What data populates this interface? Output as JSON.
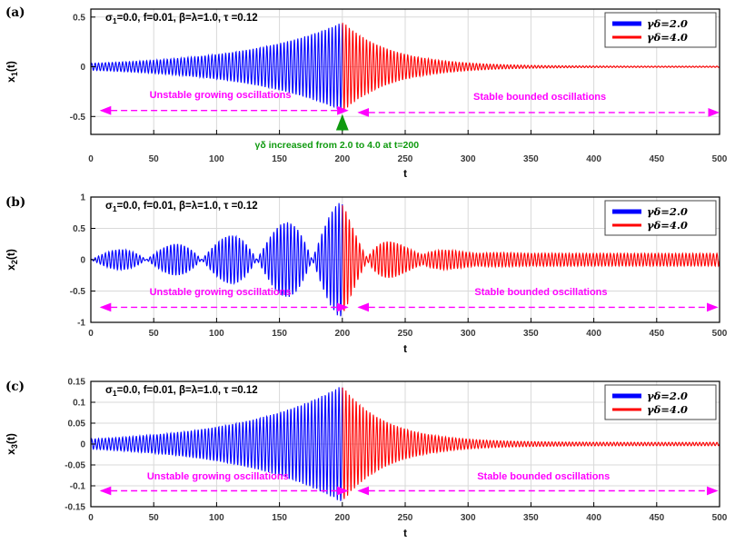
{
  "colors": {
    "blue": "#0000ff",
    "red": "#ff0000",
    "magenta": "#ff00ff",
    "green": "#0f9a0f",
    "grid": "#d9d9d9",
    "axis": "#000000",
    "tick": "#3a3a3a"
  },
  "chart_data": [
    {
      "type": "line",
      "panel_label": "(a)",
      "title_params": {
        "prefix": "σ",
        "sub": "1",
        "rest": "=0.0, f=0.01, β=λ=1.0, τ =0.12"
      },
      "xlabel": "t",
      "ylabel": {
        "prefix": "x",
        "sub": "1",
        "rest": "(t)"
      },
      "xlim": [
        0,
        500
      ],
      "xticks": [
        0,
        50,
        100,
        150,
        200,
        250,
        300,
        350,
        400,
        450,
        500
      ],
      "ylim": [
        -0.68,
        0.58
      ],
      "yticks": [
        -0.5,
        0,
        0.5
      ],
      "ytick_labels": [
        "-0.5",
        "0",
        "0.5"
      ],
      "grid": true,
      "legend": {
        "position": "top-right",
        "entries": [
          {
            "label": "γδ=2.0",
            "color": "#0000ff",
            "lw": 5
          },
          {
            "label": "γδ=4.0",
            "color": "#ff0000",
            "lw": 3
          }
        ]
      },
      "series": [
        {
          "name": "γδ=2.0",
          "color": "#0000ff",
          "type": "grow",
          "t": [
            0,
            200
          ],
          "amp0": 0.035,
          "rate": 0.01275,
          "omega": 2.3
        },
        {
          "name": "γδ=4.0",
          "color": "#ff0000",
          "type": "decay",
          "t": [
            200,
            500
          ],
          "amp0": 0.45,
          "tau": 38,
          "residual": 0.006,
          "omega": 2.3
        }
      ],
      "annotations": {
        "arrows": [
          {
            "x1": 8,
            "x2": 204,
            "y": -0.44,
            "label": "Unstable growing oscillations",
            "label_x": 103,
            "label_y": -0.315
          },
          {
            "x1": 213,
            "x2": 499,
            "y": -0.46,
            "label": "Stable bounded oscillations",
            "label_x": 357,
            "label_y": -0.335
          }
        ],
        "event": {
          "x": 200,
          "y_from": -0.645,
          "y_to": -0.495,
          "label": "γδ increased from 2.0 to 4.0 at t=200"
        }
      }
    },
    {
      "type": "line",
      "panel_label": "(b)",
      "title_params": {
        "prefix": "σ",
        "sub": "1",
        "rest": "=0.0, f=0.01, β=λ=1.0, τ =0.12"
      },
      "xlabel": "t",
      "ylabel": {
        "prefix": "x",
        "sub": "2",
        "rest": "(t)"
      },
      "xlim": [
        0,
        500
      ],
      "xticks": [
        0,
        50,
        100,
        150,
        200,
        250,
        300,
        350,
        400,
        450,
        500
      ],
      "ylim": [
        -1,
        1
      ],
      "yticks": [
        -1,
        -0.5,
        0,
        0.5,
        1
      ],
      "ytick_labels": [
        "-1",
        "-0.5",
        "0",
        "0.5",
        "1"
      ],
      "grid": true,
      "legend": {
        "position": "top-right",
        "entries": [
          {
            "label": "γδ=2.0",
            "color": "#0000ff",
            "lw": 5
          },
          {
            "label": "γδ=4.0",
            "color": "#ff0000",
            "lw": 3
          }
        ]
      },
      "series": [
        {
          "name": "γδ=2.0",
          "color": "#0000ff",
          "type": "beat-grow",
          "t": [
            0,
            200
          ],
          "amp0": 0.13,
          "rate": 0.00985,
          "beat": 44,
          "omega": 2.3
        },
        {
          "name": "γδ=4.0",
          "color": "#ff0000",
          "type": "beat-decay",
          "t": [
            200,
            500
          ],
          "amp0": 0.9,
          "tau": 30,
          "beat": 44,
          "residual": 0.1,
          "omega": 2.3
        }
      ],
      "annotations": {
        "arrows": [
          {
            "x1": 8,
            "x2": 204,
            "y": -0.76,
            "label": "Unstable growing oscillations",
            "label_x": 103,
            "label_y": -0.565
          },
          {
            "x1": 213,
            "x2": 498,
            "y": -0.76,
            "label": "Stable bounded oscillations",
            "label_x": 358,
            "label_y": -0.565
          }
        ],
        "event": null
      }
    },
    {
      "type": "line",
      "panel_label": "(c)",
      "title_params": {
        "prefix": "σ",
        "sub": "1",
        "rest": "=0.0, f=0.01, β=λ=1.0, τ =0.12"
      },
      "xlabel": "t",
      "ylabel": {
        "prefix": "x",
        "sub": "3",
        "rest": "(t)"
      },
      "xlim": [
        0,
        500
      ],
      "xticks": [
        0,
        50,
        100,
        150,
        200,
        250,
        300,
        350,
        400,
        450,
        500
      ],
      "ylim": [
        -0.15,
        0.15
      ],
      "yticks": [
        -0.15,
        -0.1,
        -0.05,
        0,
        0.05,
        0.1,
        0.15
      ],
      "ytick_labels": [
        "-0.15",
        "-0.1",
        "-0.05",
        "0",
        "0.05",
        "0.1",
        "0.15"
      ],
      "grid": true,
      "legend": {
        "position": "top-right",
        "entries": [
          {
            "label": "γδ=2.0",
            "color": "#0000ff",
            "lw": 5
          },
          {
            "label": "γδ=4.0",
            "color": "#ff0000",
            "lw": 3
          }
        ]
      },
      "series": [
        {
          "name": "γδ=2.0",
          "color": "#0000ff",
          "type": "grow",
          "t": [
            0,
            200
          ],
          "amp0": 0.012,
          "rate": 0.01232,
          "omega": 2.3
        },
        {
          "name": "γδ=4.0",
          "color": "#ff0000",
          "type": "decay",
          "t": [
            200,
            500
          ],
          "amp0": 0.135,
          "tau": 35,
          "residual": 0.004,
          "omega": 2.3
        }
      ],
      "annotations": {
        "arrows": [
          {
            "x1": 8,
            "x2": 204,
            "y": -0.112,
            "label": "Unstable growing oscillations",
            "label_x": 101,
            "label_y": -0.085
          },
          {
            "x1": 213,
            "x2": 498,
            "y": -0.112,
            "label": "Stable bounded oscillations",
            "label_x": 360,
            "label_y": -0.085
          }
        ],
        "event": null
      }
    }
  ]
}
